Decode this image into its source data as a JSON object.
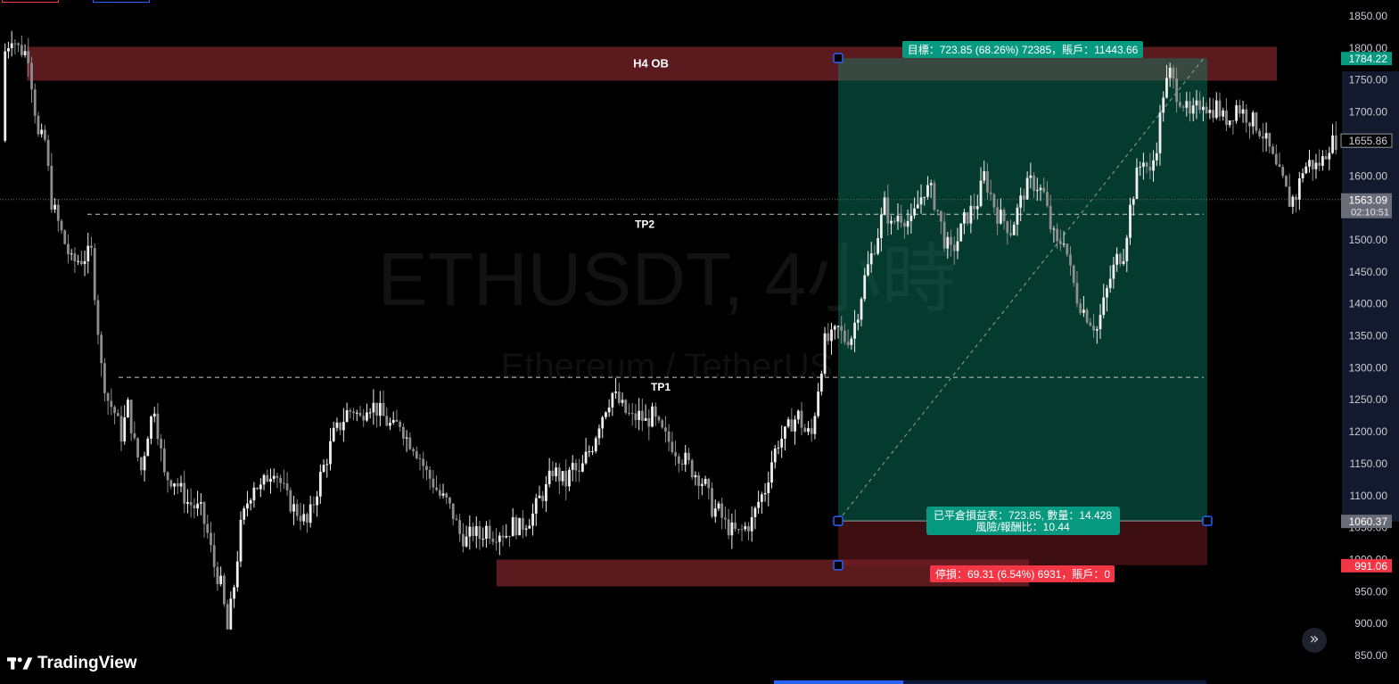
{
  "chart_data": {
    "type": "candlestick",
    "symbol_watermark": "ETHUSDT, 4小時",
    "subtitle_watermark": "Ethereum / TetherUS",
    "y_axis": {
      "ticks": [
        "1850.00",
        "1800.00",
        "1750.00",
        "1700.00",
        "1650.00",
        "1600.00",
        "1550.00",
        "1500.00",
        "1450.00",
        "1400.00",
        "1350.00",
        "1300.00",
        "1250.00",
        "1200.00",
        "1150.00",
        "1100.00",
        "1050.00",
        "1000.00",
        "950.00",
        "900.00",
        "850.00"
      ],
      "min": 850,
      "max": 1850
    },
    "price_labels": [
      {
        "text": "1784.22",
        "value": 1784.22,
        "style": "green"
      },
      {
        "text": "1655.86",
        "value": 1655.86,
        "style": "outline"
      },
      {
        "text": "1563.09",
        "value": 1563.09,
        "style": "gray",
        "sub": "02:10:51"
      },
      {
        "text": "1060.37",
        "value": 1060.37,
        "style": "gray"
      },
      {
        "text": "991.06",
        "value": 991.06,
        "style": "red"
      }
    ],
    "zones": [
      {
        "label": "H4 OB",
        "top": 1802,
        "bottom": 1749,
        "color": "#5a1a1e"
      },
      {
        "label": "",
        "top": 1000,
        "bottom": 958,
        "color": "#5a1a1e"
      }
    ],
    "levels": [
      {
        "label": "TP2",
        "value": 1540
      },
      {
        "label": "TP1",
        "value": 1285
      }
    ],
    "current_price_line": 1563.09,
    "position": {
      "entry": 1060.37,
      "target": 1784.22,
      "stop": 991.06,
      "target_label": "目標：723.85 (68.26%) 72385，賬戶：11443.66",
      "pnl_label": "已平倉損益表：723.85, 數量：14.428",
      "rr_label": "風險/報酬比：10.44",
      "stop_label": "停損：69.31 (6.54%) 6931，賬戶：0"
    },
    "anchors": [
      [
        1,
        1795
      ],
      [
        3,
        1820
      ],
      [
        5,
        1800
      ],
      [
        8,
        1790
      ],
      [
        11,
        1660
      ],
      [
        13,
        1655
      ],
      [
        15,
        1560
      ],
      [
        18,
        1510
      ],
      [
        21,
        1465
      ],
      [
        24,
        1470
      ],
      [
        27,
        1480
      ],
      [
        30,
        1300
      ],
      [
        32,
        1250
      ],
      [
        34,
        1230
      ],
      [
        36,
        1195
      ],
      [
        38,
        1240
      ],
      [
        40,
        1180
      ],
      [
        42,
        1140
      ],
      [
        44,
        1200
      ],
      [
        46,
        1240
      ],
      [
        49,
        1130
      ],
      [
        52,
        1125
      ],
      [
        56,
        1090
      ],
      [
        60,
        1075
      ],
      [
        62,
        1040
      ],
      [
        64,
        990
      ],
      [
        66,
        960
      ],
      [
        68,
        890
      ],
      [
        70,
        960
      ],
      [
        72,
        1050
      ],
      [
        74,
        1090
      ],
      [
        76,
        1120
      ],
      [
        78,
        1110
      ],
      [
        80,
        1130
      ],
      [
        82,
        1145
      ],
      [
        84,
        1120
      ],
      [
        86,
        1095
      ],
      [
        88,
        1080
      ],
      [
        90,
        1070
      ],
      [
        92,
        1055
      ],
      [
        94,
        1090
      ],
      [
        96,
        1130
      ],
      [
        98,
        1160
      ],
      [
        100,
        1195
      ],
      [
        102,
        1210
      ],
      [
        104,
        1230
      ],
      [
        106,
        1235
      ],
      [
        108,
        1220
      ],
      [
        110,
        1245
      ],
      [
        112,
        1240
      ],
      [
        114,
        1230
      ],
      [
        116,
        1215
      ],
      [
        118,
        1205
      ],
      [
        120,
        1215
      ],
      [
        122,
        1190
      ],
      [
        124,
        1180
      ],
      [
        126,
        1160
      ],
      [
        128,
        1135
      ],
      [
        130,
        1120
      ],
      [
        132,
        1100
      ],
      [
        134,
        1090
      ],
      [
        136,
        1070
      ],
      [
        138,
        1040
      ],
      [
        140,
        1030
      ],
      [
        142,
        1045
      ],
      [
        144,
        1035
      ],
      [
        146,
        1050
      ],
      [
        148,
        1040
      ],
      [
        150,
        1045
      ],
      [
        152,
        1040
      ],
      [
        154,
        1055
      ],
      [
        156,
        1050
      ],
      [
        158,
        1060
      ],
      [
        160,
        1070
      ],
      [
        162,
        1095
      ],
      [
        164,
        1110
      ],
      [
        166,
        1140
      ],
      [
        168,
        1130
      ],
      [
        170,
        1120
      ],
      [
        172,
        1145
      ],
      [
        174,
        1130
      ],
      [
        176,
        1160
      ],
      [
        178,
        1180
      ],
      [
        180,
        1215
      ],
      [
        182,
        1240
      ],
      [
        184,
        1260
      ],
      [
        186,
        1245
      ],
      [
        188,
        1230
      ],
      [
        190,
        1220
      ],
      [
        192,
        1225
      ],
      [
        194,
        1215
      ],
      [
        196,
        1225
      ],
      [
        198,
        1205
      ],
      [
        200,
        1190
      ],
      [
        202,
        1180
      ],
      [
        204,
        1165
      ],
      [
        206,
        1155
      ],
      [
        208,
        1140
      ],
      [
        210,
        1130
      ],
      [
        212,
        1115
      ],
      [
        214,
        1080
      ],
      [
        216,
        1075
      ],
      [
        218,
        1055
      ],
      [
        220,
        1045
      ],
      [
        222,
        1040
      ],
      [
        224,
        1050
      ],
      [
        226,
        1060
      ],
      [
        228,
        1090
      ],
      [
        230,
        1110
      ],
      [
        232,
        1155
      ],
      [
        234,
        1185
      ],
      [
        236,
        1195
      ],
      [
        238,
        1215
      ],
      [
        240,
        1225
      ],
      [
        242,
        1200
      ],
      [
        244,
        1195
      ],
      [
        246,
        1270
      ],
      [
        248,
        1340
      ],
      [
        250,
        1345
      ],
      [
        252,
        1360
      ],
      [
        254,
        1345
      ],
      [
        256,
        1350
      ],
      [
        258,
        1390
      ],
      [
        260,
        1440
      ],
      [
        262,
        1475
      ],
      [
        264,
        1510
      ],
      [
        266,
        1555
      ],
      [
        268,
        1520
      ],
      [
        270,
        1540
      ],
      [
        272,
        1535
      ],
      [
        274,
        1525
      ],
      [
        276,
        1555
      ],
      [
        278,
        1580
      ],
      [
        280,
        1575
      ],
      [
        282,
        1545
      ],
      [
        284,
        1500
      ],
      [
        286,
        1480
      ],
      [
        288,
        1500
      ],
      [
        290,
        1530
      ],
      [
        292,
        1545
      ],
      [
        294,
        1560
      ],
      [
        296,
        1600
      ],
      [
        298,
        1570
      ],
      [
        300,
        1540
      ],
      [
        302,
        1530
      ],
      [
        304,
        1515
      ],
      [
        306,
        1545
      ],
      [
        308,
        1575
      ],
      [
        310,
        1590
      ],
      [
        312,
        1585
      ],
      [
        314,
        1570
      ],
      [
        316,
        1520
      ],
      [
        318,
        1490
      ],
      [
        320,
        1505
      ],
      [
        322,
        1450
      ],
      [
        324,
        1410
      ],
      [
        326,
        1390
      ],
      [
        328,
        1375
      ],
      [
        330,
        1360
      ],
      [
        332,
        1400
      ],
      [
        334,
        1440
      ],
      [
        336,
        1470
      ],
      [
        338,
        1480
      ],
      [
        340,
        1550
      ],
      [
        342,
        1600
      ],
      [
        344,
        1630
      ],
      [
        346,
        1600
      ],
      [
        348,
        1650
      ],
      [
        350,
        1730
      ],
      [
        352,
        1760
      ],
      [
        354,
        1730
      ],
      [
        356,
        1715
      ],
      [
        358,
        1690
      ],
      [
        360,
        1705
      ],
      [
        362,
        1720
      ],
      [
        364,
        1700
      ],
      [
        366,
        1710
      ],
      [
        368,
        1690
      ],
      [
        370,
        1690
      ],
      [
        372,
        1710
      ],
      [
        374,
        1700
      ],
      [
        376,
        1690
      ],
      [
        378,
        1680
      ],
      [
        380,
        1665
      ],
      [
        382,
        1640
      ],
      [
        384,
        1610
      ],
      [
        386,
        1590
      ],
      [
        388,
        1560
      ],
      [
        390,
        1570
      ],
      [
        392,
        1610
      ],
      [
        394,
        1620
      ],
      [
        396,
        1615
      ],
      [
        398,
        1625
      ],
      [
        400,
        1650
      ],
      [
        402,
        1655
      ]
    ]
  },
  "branding": {
    "logo_text": "TradingView"
  },
  "nav": {
    "glyph": "»"
  }
}
